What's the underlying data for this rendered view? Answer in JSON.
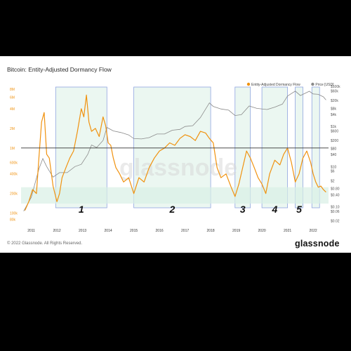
{
  "title": "Bitcoin: Entity-Adjusted Dormancy Flow",
  "copyright": "© 2022 Glassnode. All Rights Reserved.",
  "brand": "glassnode",
  "watermark": "glassnode",
  "colors": {
    "dormancy": "#f0920f",
    "price": "#8a8a8a",
    "zone_fill": "#e8f6ef",
    "zone_border": "#8fa4e0",
    "band_fill": "#d8f0e6",
    "threshold_line": "#333333"
  },
  "chart_data": {
    "type": "line",
    "title": "Bitcoin: Entity-Adjusted Dormancy Flow",
    "x_ticks": [
      "2011",
      "2012",
      "2013",
      "2014",
      "2015",
      "2016",
      "2017",
      "2018",
      "2019",
      "2020",
      "2021",
      "2022"
    ],
    "left_axis": {
      "scale": "log",
      "ticks": [
        "8M",
        "6M",
        "4M",
        "2M",
        "1M",
        "600k",
        "400k",
        "200k",
        "100k",
        "80k"
      ]
    },
    "right_axis": {
      "scale": "log",
      "ticks": [
        "$100k",
        "$60k",
        "$20k",
        "$8k",
        "$4k",
        "$1k",
        "$600",
        "$200",
        "$80",
        "$40",
        "$10",
        "$6",
        "$2",
        "$0.80",
        "$0.40",
        "$0.10",
        "$0.06",
        "$0.02"
      ]
    },
    "legend": [
      {
        "name": "Entity-Adjusted Dormancy Flow",
        "color": "#f0920f"
      },
      {
        "name": "Price [USD]",
        "color": "#8a8a8a"
      }
    ],
    "legend_position": "top-right",
    "threshold_value": "1M",
    "buy_band_upper": "250k",
    "series": [
      {
        "name": "Entity-Adjusted Dormancy Flow",
        "x": [
          2010.75,
          2010.9,
          2011.05,
          2011.2,
          2011.3,
          2011.4,
          2011.5,
          2011.6,
          2011.7,
          2011.85,
          2012.0,
          2012.1,
          2012.2,
          2012.35,
          2012.5,
          2012.65,
          2012.8,
          2012.95,
          2013.05,
          2013.15,
          2013.25,
          2013.35,
          2013.5,
          2013.65,
          2013.8,
          2013.9,
          2014.0,
          2014.1,
          2014.2,
          2014.3,
          2014.45,
          2014.6,
          2014.8,
          2015.0,
          2015.2,
          2015.4,
          2015.6,
          2015.8,
          2016.0,
          2016.2,
          2016.4,
          2016.6,
          2016.8,
          2017.0,
          2017.2,
          2017.4,
          2017.6,
          2017.8,
          2017.95,
          2018.1,
          2018.25,
          2018.4,
          2018.6,
          2018.8,
          2018.95,
          2019.1,
          2019.25,
          2019.4,
          2019.55,
          2019.7,
          2019.85,
          2020.0,
          2020.15,
          2020.3,
          2020.5,
          2020.7,
          2020.85,
          2021.0,
          2021.15,
          2021.3,
          2021.45,
          2021.6,
          2021.75,
          2021.9,
          2022.0,
          2022.1,
          2022.2,
          2022.3,
          2022.4,
          2022.5
        ],
        "values": [
          110000,
          150000,
          230000,
          200000,
          750000,
          2500000,
          3500000,
          800000,
          700000,
          260000,
          150000,
          200000,
          350000,
          500000,
          700000,
          900000,
          1800000,
          4000000,
          3000000,
          6500000,
          2500000,
          1800000,
          2000000,
          1500000,
          3000000,
          2200000,
          1200000,
          1100000,
          700000,
          500000,
          400000,
          300000,
          350000,
          200000,
          350000,
          300000,
          500000,
          700000,
          900000,
          1000000,
          1200000,
          1100000,
          1400000,
          1600000,
          1500000,
          1300000,
          1800000,
          1700000,
          1400000,
          1200000,
          500000,
          350000,
          400000,
          250000,
          180000,
          280000,
          500000,
          900000,
          700000,
          500000,
          350000,
          280000,
          200000,
          400000,
          650000,
          550000,
          800000,
          1000000,
          600000,
          300000,
          400000,
          700000,
          900000,
          600000,
          400000,
          300000,
          250000,
          260000,
          230000,
          210000
        ]
      },
      {
        "name": "Price [USD]",
        "x": [
          2010.7,
          2011.0,
          2011.3,
          2011.45,
          2011.6,
          2011.85,
          2012.1,
          2012.4,
          2012.7,
          2012.95,
          2013.2,
          2013.35,
          2013.55,
          2013.8,
          2013.95,
          2014.2,
          2014.5,
          2014.8,
          2015.0,
          2015.3,
          2015.6,
          2015.9,
          2016.2,
          2016.5,
          2016.8,
          2017.0,
          2017.3,
          2017.6,
          2017.95,
          2018.1,
          2018.4,
          2018.7,
          2018.95,
          2019.2,
          2019.5,
          2019.8,
          2020.2,
          2020.5,
          2020.8,
          2021.0,
          2021.3,
          2021.5,
          2021.85,
          2022.0,
          2022.2,
          2022.4,
          2022.5
        ],
        "values": [
          0.06,
          0.3,
          8,
          25,
          10,
          3,
          5,
          5,
          10,
          13,
          40,
          120,
          90,
          200,
          900,
          600,
          500,
          380,
          250,
          240,
          280,
          420,
          420,
          650,
          720,
          1000,
          1100,
          2800,
          15000,
          10000,
          7500,
          6500,
          3500,
          3900,
          10500,
          8000,
          7000,
          9200,
          13000,
          33000,
          58000,
          35000,
          57000,
          42000,
          40000,
          30000,
          21000
        ]
      }
    ],
    "regions": [
      {
        "label": "1",
        "x_start": 2011.95,
        "x_end": 2013.95
      },
      {
        "label": "2",
        "x_start": 2015.0,
        "x_end": 2018.0
      },
      {
        "label": "3",
        "x_start": 2018.95,
        "x_end": 2019.55
      },
      {
        "label": "4",
        "x_start": 2020.0,
        "x_end": 2021.0
      },
      {
        "label": "5",
        "x_start": 2021.3,
        "x_end": 2021.6
      },
      {
        "label": "",
        "x_start": 2021.95,
        "x_end": 2022.25
      }
    ]
  }
}
